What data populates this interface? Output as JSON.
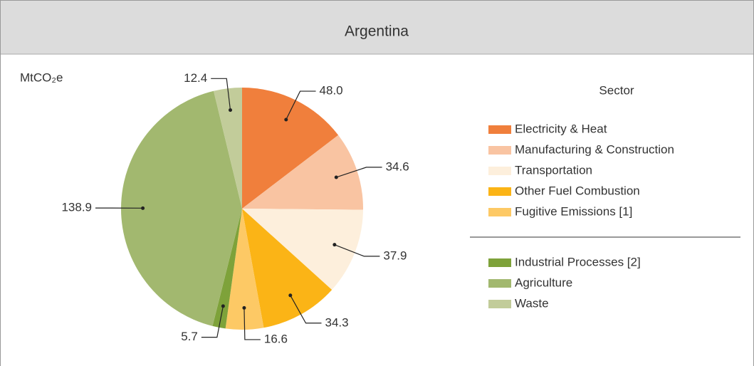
{
  "chart_data": {
    "type": "pie",
    "title": "Argentina",
    "unit_label": "MtCO₂e",
    "legend_title": "Sector",
    "categories": [
      "Electricity & Heat",
      "Manufacturing & Construction",
      "Transportation",
      "Other Fuel Combustion",
      "Fugitive Emissions [1]",
      "Industrial Processes [2]",
      "Agriculture",
      "Waste"
    ],
    "values": [
      48.0,
      34.6,
      37.9,
      34.3,
      16.6,
      5.7,
      138.9,
      12.4
    ],
    "value_labels": [
      "48.0",
      "34.6",
      "37.9",
      "34.3",
      "16.6",
      "5.7",
      "138.9",
      "12.4"
    ],
    "colors": [
      "#f07f3c",
      "#f9c4a2",
      "#fdefdc",
      "#fbb416",
      "#fdc965",
      "#7ea23a",
      "#a2b86f",
      "#c2cc9a"
    ]
  }
}
